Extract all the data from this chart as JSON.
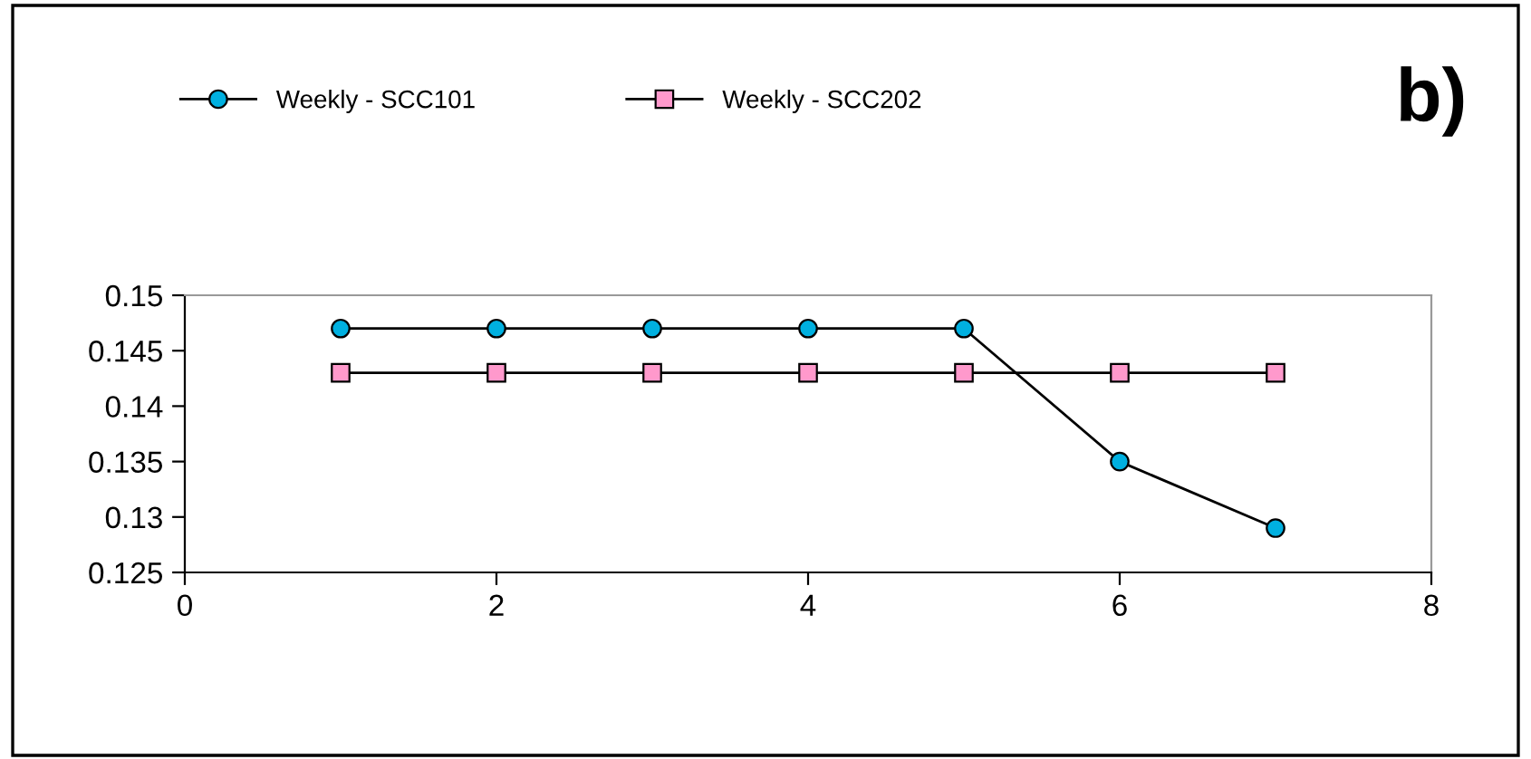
{
  "chart_data": {
    "type": "line",
    "title": "b)",
    "x": [
      1,
      2,
      3,
      4,
      5,
      6,
      7
    ],
    "series": [
      {
        "name": "Weekly - SCC101",
        "color": "#00b0e0",
        "marker": "circle",
        "values": [
          0.147,
          0.147,
          0.147,
          0.147,
          0.147,
          0.135,
          0.129
        ]
      },
      {
        "name": "Weekly - SCC202",
        "color": "#ff99cc",
        "marker": "square",
        "values": [
          0.143,
          0.143,
          0.143,
          0.143,
          0.143,
          0.143,
          0.143
        ]
      }
    ],
    "xlim": [
      0,
      8
    ],
    "xticks": [
      0,
      2,
      4,
      6,
      8
    ],
    "ylim": [
      0.125,
      0.15
    ],
    "yticks": [
      0.125,
      0.13,
      0.135,
      0.14,
      0.145,
      0.15
    ],
    "grid": false,
    "legend": "top",
    "line_style": "solid"
  }
}
